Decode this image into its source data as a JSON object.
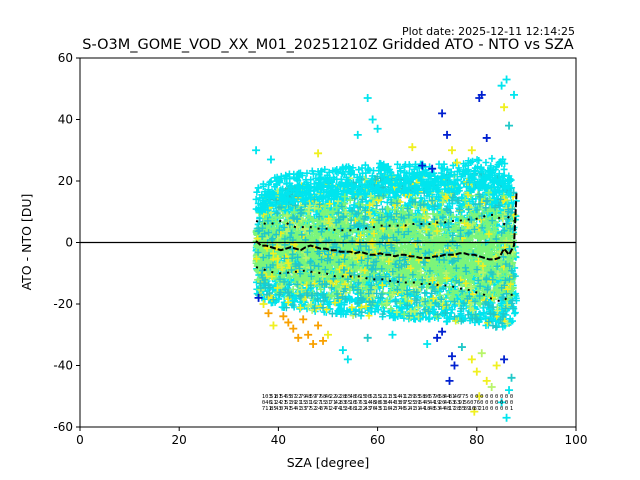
{
  "plot_date": "Plot date: 2025-12-11 12:14:25",
  "chart_data": {
    "type": "scatter",
    "title": "S-O3M_GOME_VOD_XX_M01_20251210Z Gridded ATO - NTO vs SZA",
    "xlabel": "SZA [degree]",
    "ylabel": "ATO - NTO [DU]",
    "xlim": [
      0,
      100
    ],
    "ylim": [
      -60,
      60
    ],
    "xticks": [
      0,
      20,
      40,
      60,
      80,
      100
    ],
    "yticks": [
      -60,
      -40,
      -20,
      0,
      20,
      40,
      60
    ],
    "zero_line": 0,
    "marker": "+",
    "colors": {
      "main": "#00e5ee",
      "green": "#7cf57a",
      "lightgreen": "#b8f56a",
      "yellow": "#f0f020",
      "orange": "#f8a000",
      "blue": "#0020d0",
      "teal": "#20c8c8"
    },
    "scatter_envelope": {
      "sza": [
        35.5,
        40,
        45,
        50,
        55,
        60,
        65,
        70,
        75,
        80,
        85,
        88
      ],
      "upper": [
        14,
        18,
        19,
        20,
        21,
        22,
        22,
        22,
        22,
        23,
        24,
        16
      ],
      "lower": [
        -17,
        -21,
        -22,
        -23,
        -24,
        -24,
        -25,
        -25,
        -26,
        -27,
        -28,
        -25
      ]
    },
    "outliers": [
      {
        "x": 35.5,
        "y": 30,
        "c": "main"
      },
      {
        "x": 38.5,
        "y": 27,
        "c": "main"
      },
      {
        "x": 58,
        "y": 47,
        "c": "main"
      },
      {
        "x": 59,
        "y": 40,
        "c": "main"
      },
      {
        "x": 60,
        "y": 37,
        "c": "main"
      },
      {
        "x": 56,
        "y": 35,
        "c": "main"
      },
      {
        "x": 48,
        "y": 29,
        "c": "yellow"
      },
      {
        "x": 67,
        "y": 31,
        "c": "yellow"
      },
      {
        "x": 73,
        "y": 42,
        "c": "blue"
      },
      {
        "x": 74,
        "y": 35,
        "c": "blue"
      },
      {
        "x": 80.5,
        "y": 47,
        "c": "blue"
      },
      {
        "x": 81,
        "y": 48,
        "c": "blue"
      },
      {
        "x": 82,
        "y": 34,
        "c": "blue"
      },
      {
        "x": 85,
        "y": 51,
        "c": "main"
      },
      {
        "x": 86,
        "y": 53,
        "c": "main"
      },
      {
        "x": 87.5,
        "y": 48,
        "c": "main"
      },
      {
        "x": 85.5,
        "y": 44,
        "c": "yellow"
      },
      {
        "x": 86.5,
        "y": 38,
        "c": "teal"
      },
      {
        "x": 75,
        "y": 30,
        "c": "yellow"
      },
      {
        "x": 76,
        "y": 26,
        "c": "yellow"
      },
      {
        "x": 79,
        "y": 30,
        "c": "yellow"
      },
      {
        "x": 69,
        "y": 25,
        "c": "blue"
      },
      {
        "x": 71,
        "y": 24,
        "c": "blue"
      },
      {
        "x": 36,
        "y": -18,
        "c": "blue"
      },
      {
        "x": 37,
        "y": -20,
        "c": "yellow"
      },
      {
        "x": 38,
        "y": -23,
        "c": "orange"
      },
      {
        "x": 39,
        "y": -27,
        "c": "yellow"
      },
      {
        "x": 41,
        "y": -24,
        "c": "orange"
      },
      {
        "x": 42,
        "y": -26,
        "c": "orange"
      },
      {
        "x": 43,
        "y": -28,
        "c": "orange"
      },
      {
        "x": 44,
        "y": -31,
        "c": "orange"
      },
      {
        "x": 45,
        "y": -25,
        "c": "orange"
      },
      {
        "x": 46,
        "y": -30,
        "c": "orange"
      },
      {
        "x": 47,
        "y": -33,
        "c": "orange"
      },
      {
        "x": 48,
        "y": -27,
        "c": "orange"
      },
      {
        "x": 49,
        "y": -32,
        "c": "orange"
      },
      {
        "x": 50,
        "y": -30,
        "c": "yellow"
      },
      {
        "x": 53,
        "y": -35,
        "c": "main"
      },
      {
        "x": 54,
        "y": -38,
        "c": "main"
      },
      {
        "x": 58,
        "y": -31,
        "c": "teal"
      },
      {
        "x": 63,
        "y": -30,
        "c": "main"
      },
      {
        "x": 70,
        "y": -33,
        "c": "main"
      },
      {
        "x": 72,
        "y": -31,
        "c": "blue"
      },
      {
        "x": 73,
        "y": -29,
        "c": "blue"
      },
      {
        "x": 75,
        "y": -37,
        "c": "blue"
      },
      {
        "x": 74.5,
        "y": -45,
        "c": "blue"
      },
      {
        "x": 75.5,
        "y": -40,
        "c": "blue"
      },
      {
        "x": 77,
        "y": -34,
        "c": "teal"
      },
      {
        "x": 79,
        "y": -38,
        "c": "yellow"
      },
      {
        "x": 80,
        "y": -42,
        "c": "yellow"
      },
      {
        "x": 81,
        "y": -36,
        "c": "lightgreen"
      },
      {
        "x": 79.5,
        "y": -55,
        "c": "yellow"
      },
      {
        "x": 80.5,
        "y": -50,
        "c": "yellow"
      },
      {
        "x": 82,
        "y": -45,
        "c": "yellow"
      },
      {
        "x": 83,
        "y": -47,
        "c": "lightgreen"
      },
      {
        "x": 84,
        "y": -40,
        "c": "yellow"
      },
      {
        "x": 85,
        "y": -52,
        "c": "main"
      },
      {
        "x": 86,
        "y": -57,
        "c": "main"
      },
      {
        "x": 86.5,
        "y": -48,
        "c": "main"
      },
      {
        "x": 87,
        "y": -44,
        "c": "teal"
      },
      {
        "x": 85.5,
        "y": -38,
        "c": "blue"
      }
    ],
    "mean_line": {
      "x": [
        35.5,
        36.5,
        37.5,
        38.5,
        39.5,
        40.5,
        41.5,
        42.5,
        43.5,
        44.5,
        45.5,
        46.5,
        47.5,
        48.5,
        49.5,
        50.5,
        51.5,
        52.5,
        53.5,
        54.5,
        55.5,
        56.5,
        57.5,
        58.5,
        59.5,
        60.5,
        61.5,
        62.5,
        63.5,
        64.5,
        65.5,
        66.5,
        67.5,
        68.5,
        69.5,
        70.5,
        71.5,
        72.5,
        73.5,
        74.5,
        75.5,
        76.5,
        77.5,
        78.5,
        79.5,
        80.5,
        81.5,
        82.5,
        83.5,
        84.5,
        85.5,
        86.5,
        87.5,
        88
      ],
      "y": [
        0.5,
        -1,
        -1,
        -1.5,
        -2,
        -2.5,
        -2,
        -1.5,
        -2,
        -2.5,
        -1.5,
        -1,
        -1.5,
        -2,
        -2,
        -2.5,
        -2.5,
        -3,
        -3,
        -3,
        -3.5,
        -3,
        -3.5,
        -4,
        -4,
        -3.5,
        -4,
        -4,
        -4.5,
        -4,
        -4,
        -4.5,
        -4.5,
        -5,
        -5,
        -5,
        -4.5,
        -4.5,
        -4,
        -4,
        -4,
        -3.5,
        -3.5,
        -4,
        -4,
        -4.5,
        -5,
        -5.5,
        -5.5,
        -5,
        -2,
        -4,
        -1,
        16
      ]
    },
    "upper_sd": {
      "x": [
        35.5,
        36.5,
        37.5,
        38.5,
        39.5,
        40.5,
        41.5,
        42.5,
        43.5,
        44.5,
        45.5,
        46.5,
        47.5,
        48.5,
        49.5,
        50.5,
        51.5,
        52.5,
        53.5,
        54.5,
        55.5,
        56.5,
        57.5,
        58.5,
        59.5,
        60.5,
        61.5,
        62.5,
        63.5,
        64.5,
        65.5,
        66.5,
        67.5,
        68.5,
        69.5,
        70.5,
        71.5,
        72.5,
        73.5,
        74.5,
        75.5,
        76.5,
        77.5,
        78.5,
        79.5,
        80.5,
        81.5,
        82.5,
        83.5,
        84.5,
        85.5,
        86.5,
        87.5
      ],
      "y": [
        7,
        6.5,
        6,
        6,
        6.5,
        7,
        6.5,
        5.5,
        5,
        5,
        5,
        5,
        4.5,
        4.5,
        4.5,
        4.5,
        4,
        4,
        4,
        4,
        4,
        4.5,
        4.5,
        5,
        5,
        5.5,
        5.5,
        5.5,
        5.5,
        5.5,
        5.5,
        6,
        6,
        6,
        6,
        6,
        6.5,
        6.5,
        6.5,
        7,
        7,
        7,
        7.5,
        7.5,
        7.5,
        8,
        8.5,
        9,
        9,
        8,
        6,
        8.5,
        7
      ]
    },
    "lower_sd": {
      "x": [
        35.5,
        36.5,
        37.5,
        38.5,
        39.5,
        40.5,
        41.5,
        42.5,
        43.5,
        44.5,
        45.5,
        46.5,
        47.5,
        48.5,
        49.5,
        50.5,
        51.5,
        52.5,
        53.5,
        54.5,
        55.5,
        56.5,
        57.5,
        58.5,
        59.5,
        60.5,
        61.5,
        62.5,
        63.5,
        64.5,
        65.5,
        66.5,
        67.5,
        68.5,
        69.5,
        70.5,
        71.5,
        72.5,
        73.5,
        74.5,
        75.5,
        76.5,
        77.5,
        78.5,
        79.5,
        80.5,
        81.5,
        82.5,
        83.5,
        84.5,
        85.5,
        86.5,
        87.5
      ],
      "y": [
        -8,
        -8.5,
        -9,
        -9.5,
        -10,
        -10,
        -10,
        -9.5,
        -9.5,
        -9.5,
        -9,
        -9.5,
        -9.5,
        -10,
        -10,
        -10.5,
        -11,
        -11,
        -11,
        -11,
        -11,
        -11,
        -11.5,
        -12,
        -12,
        -12,
        -12,
        -12.5,
        -12.5,
        -13,
        -13,
        -13,
        -13,
        -13.5,
        -13.5,
        -13.5,
        -13.5,
        -14,
        -14,
        -14,
        -14.5,
        -15,
        -15,
        -15.5,
        -16,
        -16.5,
        -17,
        -18,
        -18.5,
        -19,
        -19,
        -17,
        -17
      ]
    },
    "count_labels": {
      "x": [
        37,
        38,
        39,
        40,
        41,
        42,
        43,
        44,
        45,
        46,
        47,
        48,
        49,
        50,
        51,
        52,
        53,
        54,
        55,
        56,
        57,
        58,
        59,
        60,
        61,
        62,
        63,
        64,
        65,
        66,
        67,
        68,
        69,
        70,
        71,
        72,
        73,
        74,
        75,
        76,
        77,
        78,
        79,
        80,
        81,
        82,
        83,
        84,
        85,
        86,
        87
      ],
      "rows": [
        [
          "1",
          "03",
          "51",
          "81",
          "54",
          "65",
          "87",
          "22",
          "79",
          "48",
          "59",
          "77",
          "68",
          "46",
          "22",
          "92",
          "28",
          "85",
          "48",
          "66",
          "15",
          "00",
          "52",
          "15",
          "12",
          "11",
          "33",
          "14",
          "41",
          "12",
          "39",
          "55",
          "58",
          "86",
          "57",
          "96",
          "58",
          "44",
          "81",
          "46",
          "77",
          "5",
          "0",
          "0",
          "0",
          "0",
          "0",
          "0",
          "0",
          "0",
          "0"
        ],
        [
          "0",
          "46",
          "11",
          "24",
          "21",
          "51",
          "39",
          "21",
          "15",
          "31",
          "16",
          "27",
          "15",
          "31",
          "71",
          "42",
          "83",
          "65",
          "16",
          "57",
          "63",
          "14",
          "48",
          "98",
          "63",
          "84",
          "44",
          "33",
          "89",
          "75",
          "25",
          "39",
          "54",
          "45",
          "44",
          "19",
          "20",
          "44",
          "63",
          "63",
          "91",
          "56",
          "0",
          "76",
          "0",
          "0",
          "0",
          "0",
          "0",
          "0",
          "0"
        ],
        [
          "7",
          "11",
          "85",
          "43",
          "07",
          "41",
          "54",
          "41",
          "33",
          "77",
          "52",
          "24",
          "37",
          "41",
          "24",
          "74",
          "15",
          "34",
          "58",
          "12",
          "22",
          "43",
          "76",
          "43",
          "51",
          "16",
          "42",
          "37",
          "46",
          "52",
          "41",
          "31",
          "44",
          "18",
          "48",
          "53",
          "44",
          "48",
          "17",
          "28",
          "35",
          "89",
          "16",
          "87",
          "21",
          "0",
          "0",
          "0",
          "0",
          "0",
          "1"
        ]
      ]
    }
  }
}
